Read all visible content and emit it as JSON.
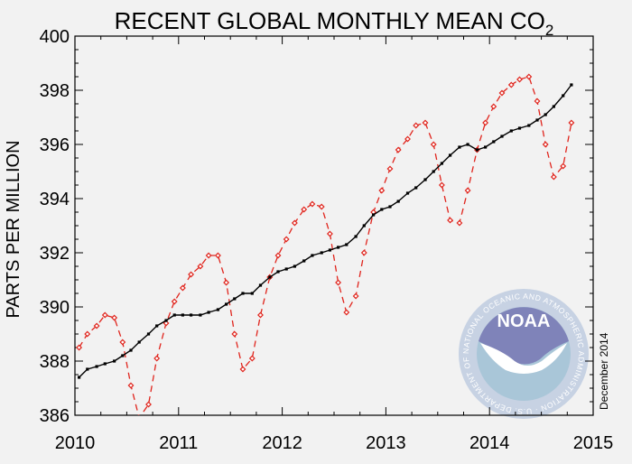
{
  "chart_data": {
    "type": "line",
    "title": "RECENT GLOBAL MONTHLY MEAN CO",
    "title_subscript": "2",
    "xlabel": "",
    "ylabel": "PARTS PER MILLION",
    "xlim": [
      2010,
      2015
    ],
    "ylim": [
      386,
      400
    ],
    "x_ticks": [
      "2010",
      "2011",
      "2012",
      "2013",
      "2014",
      "2015"
    ],
    "y_ticks": [
      "386",
      "388",
      "390",
      "392",
      "394",
      "396",
      "398",
      "400"
    ],
    "grid": false,
    "legend": "none",
    "colors": {
      "monthly": "#e0241c",
      "trend": "#000000"
    },
    "x": [
      2010.04,
      2010.12,
      2010.21,
      2010.29,
      2010.38,
      2010.46,
      2010.54,
      2010.62,
      2010.71,
      2010.79,
      2010.88,
      2010.96,
      2011.04,
      2011.12,
      2011.21,
      2011.29,
      2011.38,
      2011.46,
      2011.54,
      2011.62,
      2011.71,
      2011.79,
      2011.88,
      2011.96,
      2012.04,
      2012.12,
      2012.21,
      2012.29,
      2012.38,
      2012.46,
      2012.54,
      2012.62,
      2012.71,
      2012.79,
      2012.88,
      2012.96,
      2013.04,
      2013.12,
      2013.21,
      2013.29,
      2013.38,
      2013.46,
      2013.54,
      2013.62,
      2013.71,
      2013.79,
      2013.88,
      2013.96,
      2014.04,
      2014.12,
      2014.21,
      2014.29,
      2014.38,
      2014.46,
      2014.54,
      2014.62,
      2014.71,
      2014.79
    ],
    "series": [
      {
        "values": [
          388.5,
          389.0,
          389.3,
          389.7,
          389.6,
          388.7,
          387.1,
          385.9,
          386.4,
          388.1,
          389.4,
          390.2,
          390.7,
          391.2,
          391.5,
          391.9,
          391.9,
          390.9,
          389.0,
          387.7,
          388.1,
          389.7,
          391.1,
          391.9,
          392.5,
          393.1,
          393.6,
          393.8,
          393.7,
          392.7,
          390.9,
          389.8,
          390.4,
          392.0,
          393.5,
          394.3,
          395.1,
          395.8,
          396.2,
          396.7,
          396.8,
          396.0,
          394.5,
          393.2,
          393.1,
          394.3,
          395.8,
          396.8,
          397.4,
          397.9,
          398.2,
          398.4,
          398.5,
          397.6,
          396.0,
          394.8,
          395.2,
          396.8
        ]
      },
      {
        "values": [
          387.4,
          387.7,
          387.8,
          387.9,
          388.0,
          388.2,
          388.4,
          388.7,
          389.0,
          389.3,
          389.5,
          389.7,
          389.7,
          389.7,
          389.7,
          389.8,
          389.9,
          390.1,
          390.3,
          390.5,
          390.5,
          390.8,
          391.1,
          391.3,
          391.4,
          391.5,
          391.7,
          391.9,
          392.0,
          392.1,
          392.2,
          392.3,
          392.6,
          393.0,
          393.4,
          393.6,
          393.7,
          393.9,
          394.2,
          394.4,
          394.7,
          395.0,
          395.3,
          395.6,
          395.9,
          396.0,
          395.8,
          395.9,
          396.1,
          396.3,
          396.5,
          396.6,
          396.7,
          396.9,
          397.1,
          397.4,
          397.8,
          398.2
        ]
      }
    ]
  },
  "side_note": "December 2014",
  "logo": {
    "name": "NOAA",
    "ring_text": "NATIONAL OCEANIC AND ATMOSPHERIC ADMINISTRATION · U.S. DEPARTMENT OF COMMERCE ·"
  }
}
